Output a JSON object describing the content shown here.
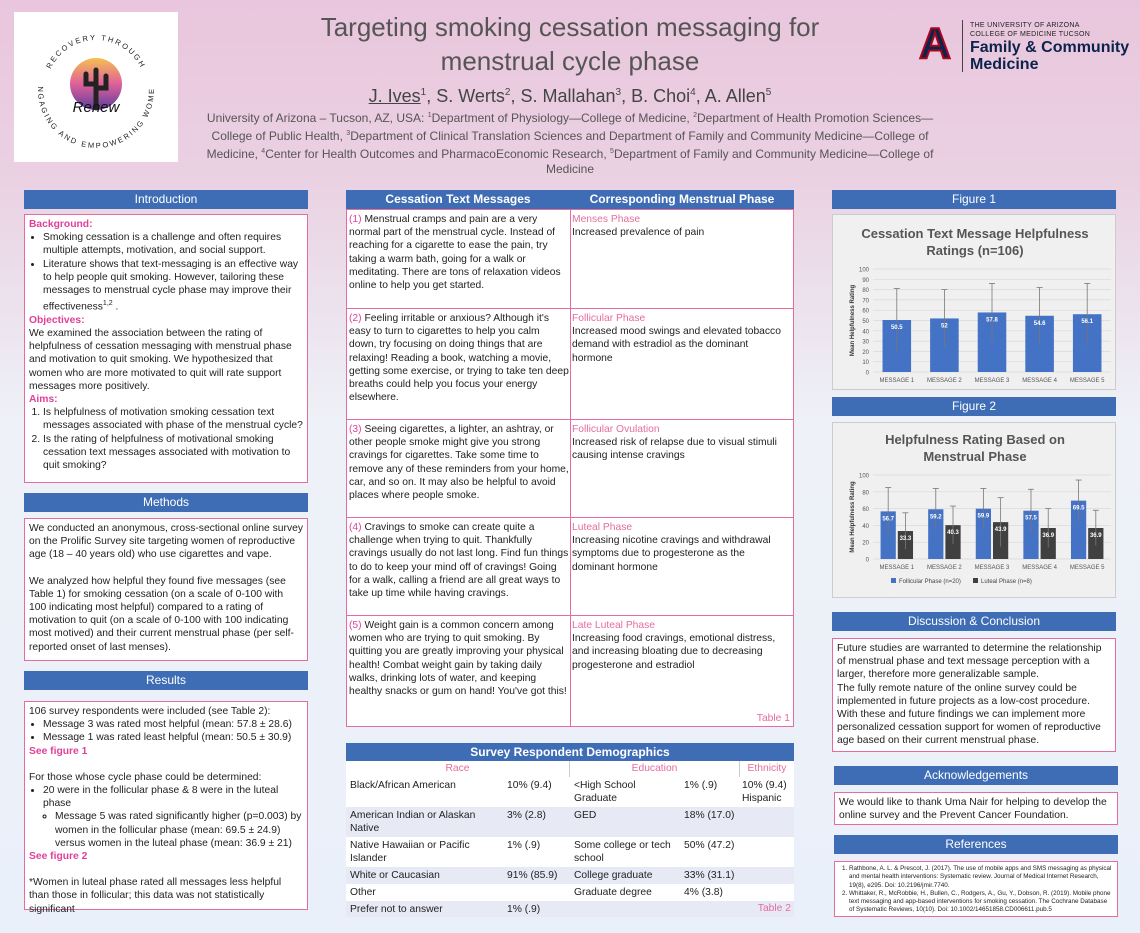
{
  "header": {
    "title_line1": "Targeting smoking cessation messaging for",
    "title_line2": "menstrual cycle phase",
    "authors": [
      {
        "name": "J. Ives",
        "sup": "1",
        "presenter": true
      },
      {
        "name": ", S. Werts",
        "sup": "2"
      },
      {
        "name": ", S. Mallahan",
        "sup": "3"
      },
      {
        "name": ", B. Choi",
        "sup": "4"
      },
      {
        "name": ", A. Allen",
        "sup": "5"
      }
    ],
    "affil_1": "University of Arizona – Tucson, AZ, USA: ",
    "affil_2": "Department of Physiology—College of Medicine, ",
    "affil_3": "Department of Health Promotion Sciences—College of Public Health, ",
    "affil_4": "Department of Clinical Translation Sciences and Department of Family and Community Medicine—College of Medicine, ",
    "affil_5": "Center for Health Outcomes and PharmacoEconomic Research, ",
    "affil_6": "Department of Family and Community Medicine—College of Medicine"
  },
  "logos": {
    "renew_ring": "RECOVERY THROUGH · ENGAGING AND EMPOWERING WOMEN",
    "renew_word": "Renew",
    "ua_top1": "THE UNIVERSITY OF ARIZONA",
    "ua_top2": "COLLEGE OF MEDICINE TUCSON",
    "ua_dept1": "Family & Community",
    "ua_dept2": "Medicine",
    "ua_letter": "A"
  },
  "intro": {
    "header": "Introduction",
    "background_label": "Background:",
    "bullet1": "Smoking cessation is a challenge and often requires multiple attempts, motivation, and social support.",
    "bullet2": "Literature shows that text-messaging is an effective way to help people quit smoking. However, tailoring these messages to menstrual cycle phase may improve their effectiveness",
    "bullet2_sup": "1,2",
    "bullet2_end": " .",
    "objectives_label": "Objectives:",
    "objectives": "We examined the association between the rating of helpfulness of cessation messaging with menstrual phase and motivation to quit smoking. We hypothesized that women who are more motivated to quit will rate support messages more positively.",
    "aims_label": "Aims:",
    "aim1": "Is helpfulness of motivation smoking cessation text messages associated with phase of the menstrual cycle?",
    "aim2": "Is the rating of helpfulness of motivational smoking cessation text messages associated with motivation to quit smoking?"
  },
  "methods": {
    "header": "Methods",
    "p1": "We conducted an anonymous, cross-sectional online survey on the Prolific Survey site targeting women of reproductive age (18 – 40 years old) who use cigarettes and vape.",
    "p2": "We analyzed how helpful they found five messages (see Table 1) for smoking cessation (on a scale of 0-100 with 100 indicating most helpful) compared to a rating of motivation to quit (on a scale of 0-100 with 100 indicating most motived) and their current menstrual phase (per self-reported onset of last menses)."
  },
  "results": {
    "header": "Results",
    "intro": "106 survey respondents were included (see Table 2):",
    "b1": "Message 3 was rated most helpful (mean: 57.8 ± 28.6)",
    "b2": "Message 1 was rated least helpful (mean: 50.5 ± 30.9)",
    "see1": "See figure 1",
    "p2": "For those whose cycle phase could be determined:",
    "b3": "20 were in the follicular phase & 8 were in the luteal phase",
    "b4": "Message 5 was rated significantly higher (p=0.003) by women in the follicular phase (mean: 69.5 ± 24.9) versus women in the luteal phase (mean: 36.9 ± 21)",
    "see2": "See figure 2",
    "note": "*Women in luteal phase rated all messages less helpful than those in follicular; this data was not statistically significant"
  },
  "table1": {
    "col1": "Cessation Text Messages",
    "col2": "Corresponding Menstrual Phase",
    "caption": "Table 1",
    "rows": [
      {
        "num": "(1)",
        "msg": " Menstrual cramps and pain are a very normal part of the menstrual cycle. Instead of reaching for a cigarette to ease the pain, try taking a warm bath, going for a walk or meditating. There are tons of relaxation videos online to help you get started.",
        "phase": "Menses Phase",
        "desc": "Increased prevalence of pain"
      },
      {
        "num": "(2)",
        "msg": " Feeling irritable or anxious? Although it's easy to turn to cigarettes to help you calm down, try focusing on doing things that are relaxing! Reading a book, watching a movie, getting some exercise, or trying to take ten deep breaths could help you focus your energy elsewhere.",
        "phase": "Follicular Phase",
        "desc": "Increased mood swings and elevated tobacco demand with estradiol as the dominant hormone"
      },
      {
        "num": "(3)",
        "msg": " Seeing cigarettes, a lighter, an ashtray, or other people smoke might give you strong cravings for cigarettes. Take some time to remove any of these reminders from your home, car, and so on. It may also be helpful to avoid places where people smoke.",
        "phase": "Follicular Ovulation",
        "desc": "Increased risk of relapse due to visual stimuli causing intense cravings"
      },
      {
        "num": "(4)",
        "msg": " Cravings to smoke can create quite a challenge when trying to quit. Thankfully cravings usually do not last long. Find fun things to do to keep your mind off of cravings! Going for a walk, calling a friend are all great ways to take up time while having cravings.",
        "phase": "Luteal Phase",
        "desc": "Increasing nicotine cravings and withdrawal symptoms due to progesterone as the dominant hormone"
      },
      {
        "num": "(5)",
        "msg": " Weight gain is a common concern among women who are trying to quit smoking. By quitting you are greatly improving your physical health! Combat weight gain by taking daily walks, drinking lots of water, and keeping healthy snacks or gum on hand! You've got this!",
        "phase": "Late Luteal Phase",
        "desc": "Increasing food cravings, emotional distress, and increasing bloating due to decreasing progesterone and estradiol"
      }
    ]
  },
  "table2": {
    "header": "Survey Respondent Demographics",
    "sub_race": "Race",
    "sub_edu": "Education",
    "sub_eth": "Ethnicity",
    "caption": "Table 2",
    "rows": [
      {
        "race": "Black/African American",
        "race_v": "10% (9.4)",
        "edu": "<High School Graduate",
        "edu_v": "1% (.9)",
        "eth": "10% (9.4) Hispanic"
      },
      {
        "race": "American Indian or Alaskan Native",
        "race_v": "3% (2.8)",
        "edu": "GED",
        "edu_v": "18% (17.0)",
        "eth": ""
      },
      {
        "race": "Native Hawaiian or Pacific Islander",
        "race_v": "1% (.9)",
        "edu": "Some college or tech school",
        "edu_v": "50% (47.2)",
        "eth": ""
      },
      {
        "race": "White or Caucasian",
        "race_v": "91% (85.9)",
        "edu": "College graduate",
        "edu_v": "33% (31.1)",
        "eth": ""
      },
      {
        "race": "Other",
        "race_v": "",
        "edu": "Graduate degree",
        "edu_v": "4% (3.8)",
        "eth": ""
      },
      {
        "race": "Prefer not to answer",
        "race_v": "1% (.9)",
        "edu": "",
        "edu_v": "",
        "eth": ""
      }
    ]
  },
  "figure1": {
    "header": "Figure 1"
  },
  "figure2": {
    "header": "Figure 2"
  },
  "discussion": {
    "header": "Discussion & Conclusion",
    "text": "Future studies are warranted to determine the relationship of menstrual phase and text message perception with a larger, therefore more generalizable sample.\nThe fully remote nature of the online survey could be implemented in future projects as a low-cost procedure. With these and future findings we can implement more personalized cessation support for women of reproductive age based on their current menstrual phase."
  },
  "ack": {
    "header": "Acknowledgements",
    "text": "We would like to thank Uma Nair for helping to develop the online survey and the Prevent Cancer Foundation."
  },
  "refs": {
    "header": "References",
    "r1": "Rathbone, A. L. & Prescot, J. (2017). The use of mobile apps and SMS messaging as physical and mental health interventions: Systematic review. Journal of Medical Internet Research, 19(8), e295. Doi: 10.2196/jmir.7740.",
    "r2": "Whittaker, R., McRobbie, H., Bullen, C., Rodgers, A., Gu, Y., Dobson, R. (2019). Mobile phone text messaging and app-based interventions for smoking cessation. The Cochrane Database of Systematic Reviews, 10(10). Doi: 10.1002/14651858.CD006611.pub.5"
  },
  "colors": {
    "accent": "#3f6db5",
    "pink": "#e46ca0",
    "bar": "#4472c4",
    "bar_dark": "#404040"
  },
  "chart_data": [
    {
      "type": "bar",
      "title_line1": "Cessation Text Message Helpfulness",
      "title_line2": "Ratings (n=106)",
      "ylabel": "Mean Helpfulness Rating",
      "xlabel": "",
      "ylim": [
        0,
        100
      ],
      "yticks": [
        0,
        10,
        20,
        30,
        40,
        50,
        60,
        70,
        80,
        90,
        100
      ],
      "categories": [
        "MESSAGE 1",
        "MESSAGE 2",
        "MESSAGE 3",
        "MESSAGE 4",
        "MESSAGE 5"
      ],
      "values": [
        50.5,
        52,
        57.8,
        54.6,
        56.1
      ],
      "value_labels": [
        "50.5",
        "52",
        "57.8",
        "54.6",
        "56.1"
      ],
      "error_upper": [
        81,
        80,
        86,
        82,
        86
      ],
      "grid": true
    },
    {
      "type": "bar",
      "title_line1": "Helpfulness Rating Based on",
      "title_line2": "Menstrual Phase",
      "ylabel": "Mean Helpfulness Rating",
      "xlabel": "",
      "ylim": [
        0,
        100
      ],
      "yticks": [
        0,
        20,
        40,
        60,
        80,
        100
      ],
      "categories": [
        "MESSAGE 1",
        "MESSAGE 2",
        "MESSAGE 3",
        "MESSAGE 4",
        "MESSAGE 5"
      ],
      "series": [
        {
          "name": "Follicular Phase (n=20)",
          "values": [
            56.7,
            59.2,
            59.9,
            57.5,
            69.5
          ],
          "labels": [
            "56.7",
            "59.2",
            "59.9",
            "57.5",
            "69.5"
          ],
          "error_upper": [
            85,
            84,
            84,
            83,
            94
          ]
        },
        {
          "name": "Luteal Phase (n=8)",
          "values": [
            33.3,
            40.3,
            43.9,
            36.9,
            36.9
          ],
          "labels": [
            "33.3",
            "40.3",
            "43.9",
            "36.9",
            "36.9"
          ],
          "error_upper": [
            55,
            63,
            73,
            60,
            58
          ]
        }
      ],
      "legend": "bottom",
      "grid": true
    }
  ]
}
